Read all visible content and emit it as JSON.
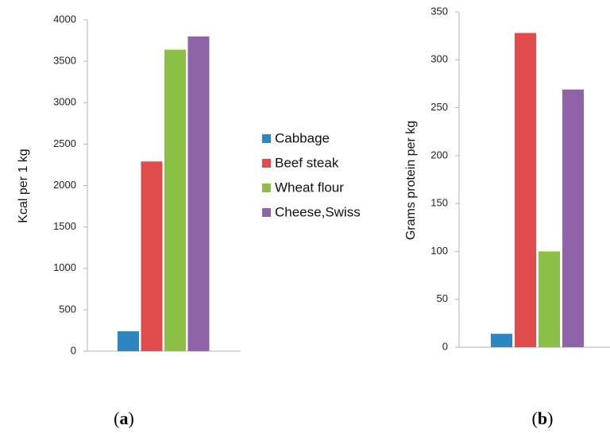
{
  "legend": {
    "items": [
      {
        "name": "Cabbage",
        "color": "#2E86C1"
      },
      {
        "name": "Beef steak",
        "color": "#E04B4B"
      },
      {
        "name": "Wheat flour",
        "color": "#8CBF45"
      },
      {
        "name": "Cheese,Swiss",
        "color": "#8E63A8"
      }
    ]
  },
  "chart_data": [
    {
      "type": "bar",
      "panel_label": {
        "open": "(",
        "letter": "a",
        "close": ")"
      },
      "ylabel": "Kcal per 1 kg",
      "ylim": [
        0,
        4000
      ],
      "yticks": [
        0,
        500,
        1000,
        1500,
        2000,
        2500,
        3000,
        3500,
        4000
      ],
      "grid": false,
      "series": [
        {
          "name": "Cabbage",
          "values": [
            240
          ]
        },
        {
          "name": "Beef steak",
          "values": [
            2290
          ]
        },
        {
          "name": "Wheat flour",
          "values": [
            3640
          ]
        },
        {
          "name": "Cheese,Swiss",
          "values": [
            3800
          ]
        }
      ]
    },
    {
      "type": "bar",
      "panel_label": {
        "open": "(",
        "letter": "b",
        "close": ")"
      },
      "ylabel": "Grams protein per kg",
      "ylim": [
        0,
        350
      ],
      "yticks": [
        0,
        50,
        100,
        150,
        200,
        250,
        300,
        350
      ],
      "grid": false,
      "series": [
        {
          "name": "Cabbage",
          "values": [
            14
          ]
        },
        {
          "name": "Beef steak",
          "values": [
            328
          ]
        },
        {
          "name": "Wheat flour",
          "values": [
            100
          ]
        },
        {
          "name": "Cheese,Swiss",
          "values": [
            269
          ]
        }
      ]
    }
  ]
}
